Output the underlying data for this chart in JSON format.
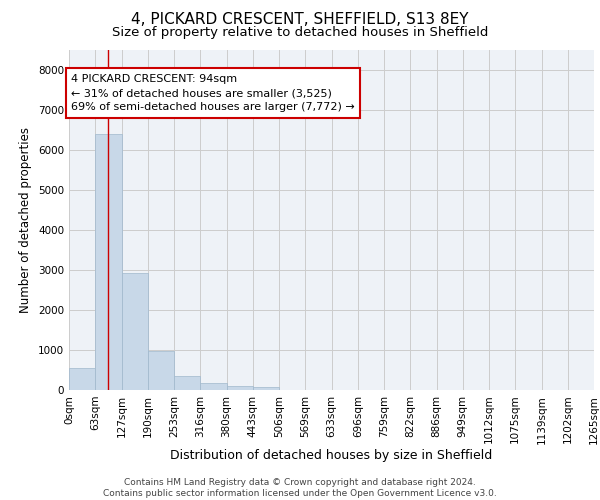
{
  "title": "4, PICKARD CRESCENT, SHEFFIELD, S13 8EY",
  "subtitle": "Size of property relative to detached houses in Sheffield",
  "xlabel": "Distribution of detached houses by size in Sheffield",
  "ylabel": "Number of detached properties",
  "bar_values": [
    560,
    6400,
    2920,
    980,
    360,
    170,
    100,
    70,
    0,
    0,
    0,
    0,
    0,
    0,
    0,
    0,
    0,
    0,
    0,
    0
  ],
  "tick_labels": [
    "0sqm",
    "63sqm",
    "127sqm",
    "190sqm",
    "253sqm",
    "316sqm",
    "380sqm",
    "443sqm",
    "506sqm",
    "569sqm",
    "633sqm",
    "696sqm",
    "759sqm",
    "822sqm",
    "886sqm",
    "949sqm",
    "1012sqm",
    "1075sqm",
    "1139sqm",
    "1202sqm",
    "1265sqm"
  ],
  "bar_color": "#c8d8e8",
  "bar_edge_color": "#a0b8cc",
  "vline_x": 1.49,
  "vline_color": "#cc0000",
  "annotation_text": "4 PICKARD CRESCENT: 94sqm\n← 31% of detached houses are smaller (3,525)\n69% of semi-detached houses are larger (7,772) →",
  "annotation_box_color": "#ffffff",
  "annotation_box_edge_color": "#cc0000",
  "ylim": [
    0,
    8500
  ],
  "yticks": [
    0,
    1000,
    2000,
    3000,
    4000,
    5000,
    6000,
    7000,
    8000
  ],
  "grid_color": "#cccccc",
  "background_color": "#eef2f7",
  "footer_text": "Contains HM Land Registry data © Crown copyright and database right 2024.\nContains public sector information licensed under the Open Government Licence v3.0.",
  "title_fontsize": 11,
  "subtitle_fontsize": 9.5,
  "xlabel_fontsize": 9,
  "ylabel_fontsize": 8.5,
  "tick_fontsize": 7.5,
  "annotation_fontsize": 8,
  "footer_fontsize": 6.5
}
